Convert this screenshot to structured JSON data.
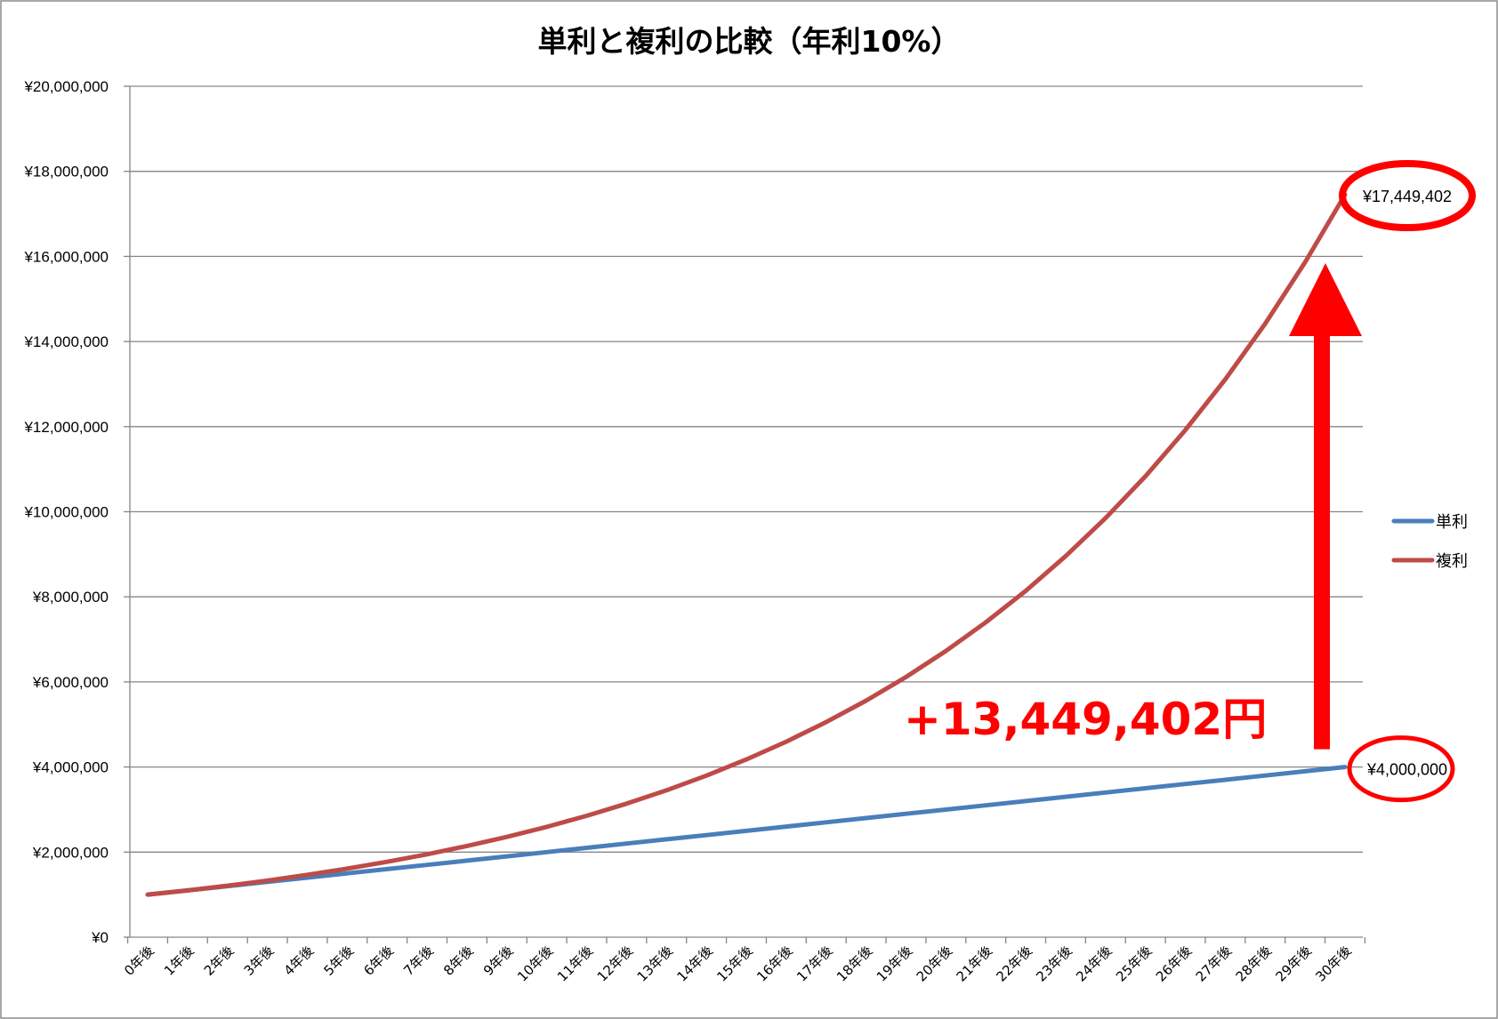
{
  "chart_data": {
    "type": "line",
    "title": "単利と複利の比較（年利10%）",
    "xlabel": "",
    "ylabel": "",
    "categories": [
      "0年後",
      "1年後",
      "2年後",
      "3年後",
      "4年後",
      "5年後",
      "6年後",
      "7年後",
      "8年後",
      "9年後",
      "10年後",
      "11年後",
      "12年後",
      "13年後",
      "14年後",
      "15年後",
      "16年後",
      "17年後",
      "18年後",
      "19年後",
      "20年後",
      "21年後",
      "22年後",
      "23年後",
      "24年後",
      "25年後",
      "26年後",
      "27年後",
      "28年後",
      "29年後",
      "30年後"
    ],
    "ylim": [
      0,
      20000000
    ],
    "yticks": [
      0,
      2000000,
      4000000,
      6000000,
      8000000,
      10000000,
      12000000,
      14000000,
      16000000,
      18000000,
      20000000
    ],
    "ytick_labels": [
      "¥0",
      "¥2,000,000",
      "¥4,000,000",
      "¥6,000,000",
      "¥8,000,000",
      "¥10,000,000",
      "¥12,000,000",
      "¥14,000,000",
      "¥16,000,000",
      "¥18,000,000",
      "¥20,000,000"
    ],
    "grid": "horizontal",
    "legend_position": "right",
    "series": [
      {
        "name": "単利",
        "color": "#4a7ebb",
        "values": [
          1000000,
          1100000,
          1200000,
          1300000,
          1400000,
          1500000,
          1600000,
          1700000,
          1800000,
          1900000,
          2000000,
          2100000,
          2200000,
          2300000,
          2400000,
          2500000,
          2600000,
          2700000,
          2800000,
          2900000,
          3000000,
          3100000,
          3200000,
          3300000,
          3400000,
          3500000,
          3600000,
          3700000,
          3800000,
          3900000,
          4000000
        ]
      },
      {
        "name": "複利",
        "color": "#be4b48",
        "values": [
          1000000,
          1100000,
          1210000,
          1331000,
          1464100,
          1610510,
          1771561,
          1948717,
          2143589,
          2357948,
          2593742,
          2853117,
          3138428,
          3452271,
          3797498,
          4177248,
          4594973,
          5054470,
          5559917,
          6115909,
          6727500,
          7400250,
          8140275,
          8954302,
          9849733,
          10834706,
          11918177,
          13109994,
          14420994,
          15863093,
          17449402
        ]
      }
    ],
    "annotations": {
      "final_compound_label": "¥17,449,402",
      "final_simple_label": "¥4,000,000",
      "difference_label": "+13,449,402円",
      "highlight_color": "#ff0000"
    }
  }
}
